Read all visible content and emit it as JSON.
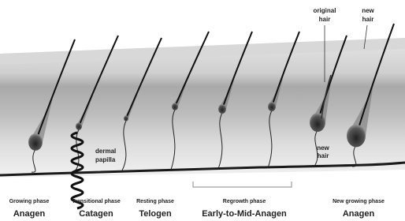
{
  "annotations": {
    "original_hair": [
      "original",
      "hair"
    ],
    "new_hair_top": [
      "new",
      "hair"
    ],
    "dermal_papilla": [
      "dermal",
      "papilla"
    ],
    "new_hair_follicle": [
      "new",
      "hair"
    ]
  },
  "phases": [
    {
      "phase": "Growing phase",
      "name": "Anagen"
    },
    {
      "phase": "Transitional phase",
      "name": "Catagen"
    },
    {
      "phase": "Resting phase",
      "name": "Telogen"
    },
    {
      "phase": "Regrowth phase",
      "name": "Early-to-Mid-Anagen"
    },
    {
      "phase": "New growing phase",
      "name": "Anagen"
    }
  ]
}
